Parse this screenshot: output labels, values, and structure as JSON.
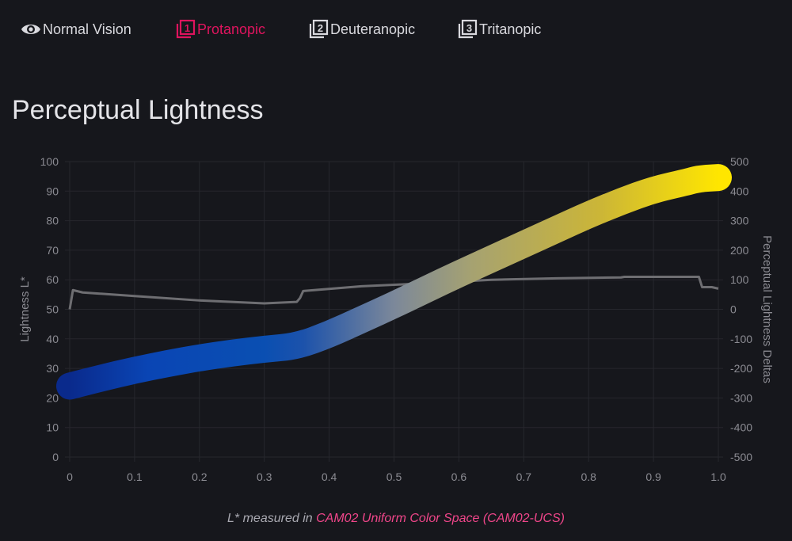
{
  "tabs": [
    {
      "label": "Normal Vision",
      "icon": "eye-icon",
      "active": false
    },
    {
      "label": "Protanopic",
      "icon": "square-1-icon",
      "active": true
    },
    {
      "label": "Deuteranopic",
      "icon": "square-2-icon",
      "active": false
    },
    {
      "label": "Tritanopic",
      "icon": "square-3-icon",
      "active": false
    }
  ],
  "colors": {
    "accent": "#e0145e",
    "link": "#f0468a",
    "background": "#16171c",
    "delta_line": "#6e6e72"
  },
  "chart_data": {
    "type": "line",
    "title": "Perceptual Lightness",
    "xlabel": "",
    "ylabel": "Lightness L*",
    "y2label": "Perceptual Lightness Deltas",
    "xlim": [
      0,
      1.0
    ],
    "ylim": [
      0,
      100
    ],
    "y2lim": [
      -500,
      500
    ],
    "x_ticks": [
      "0",
      "0.1",
      "0.2",
      "0.3",
      "0.4",
      "0.5",
      "0.6",
      "0.7",
      "0.8",
      "0.9",
      "1.0"
    ],
    "y_ticks": [
      "0",
      "10",
      "20",
      "30",
      "40",
      "50",
      "60",
      "70",
      "80",
      "90",
      "100"
    ],
    "y2_ticks": [
      "-500",
      "-400",
      "-300",
      "-200",
      "-100",
      "0",
      "100",
      "200",
      "300",
      "400",
      "500"
    ],
    "grid": true,
    "series": [
      {
        "axis": "left",
        "x": [
          0,
          0.05,
          0.1,
          0.15,
          0.2,
          0.25,
          0.3,
          0.35,
          0.4,
          0.45,
          0.5,
          0.55,
          0.6,
          0.65,
          0.7,
          0.75,
          0.8,
          0.85,
          0.9,
          0.95,
          0.97,
          1.0
        ],
        "values": [
          24,
          26.8,
          29.4,
          31.6,
          33.6,
          35.2,
          36.5,
          37.5,
          41.5,
          46.5,
          51.5,
          56.8,
          62,
          67,
          72,
          77,
          82,
          86.5,
          90.5,
          93,
          94.2,
          94.6
        ],
        "colors": [
          "#0a2a8c",
          "#0a45b4",
          "#0a4fb2",
          "#1c52ab",
          "#7c889a",
          "#a6a271",
          "#ccb636",
          "#ffe600"
        ]
      },
      {
        "axis": "right",
        "x": [
          0,
          0.005,
          0.02,
          0.1,
          0.2,
          0.3,
          0.35,
          0.355,
          0.36,
          0.45,
          0.55,
          0.65,
          0.75,
          0.85,
          0.855,
          0.95,
          0.97,
          0.975,
          0.99,
          1.0
        ],
        "values": [
          0,
          65,
          57,
          45,
          30,
          20,
          25,
          38,
          62,
          78,
          88,
          100,
          105,
          108,
          110,
          110,
          110,
          75,
          75,
          70
        ]
      }
    ]
  },
  "caption": {
    "prefix": "L* measured in ",
    "link": "CAM02 Uniform Color Space (CAM02-UCS)"
  }
}
